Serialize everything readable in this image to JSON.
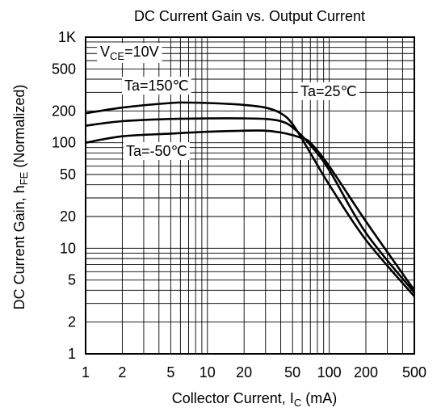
{
  "chart_data": {
    "type": "line",
    "title": "DC Current Gain vs. Output Current",
    "xlabel": {
      "main": "Collector Current, I",
      "sub": "C",
      "unit": " (mA)"
    },
    "ylabel": {
      "main": "DC Current Gain, h",
      "sub": "FE",
      "unit": " (Normalized)"
    },
    "xscale": "log",
    "yscale": "log",
    "xlim": [
      1,
      500
    ],
    "ylim": [
      1,
      1000
    ],
    "grid": true,
    "x_ticks": [
      {
        "value": 1,
        "label": "1"
      },
      {
        "value": 2,
        "label": "2"
      },
      {
        "value": 5,
        "label": "5"
      },
      {
        "value": 10,
        "label": "10"
      },
      {
        "value": 20,
        "label": "20"
      },
      {
        "value": 50,
        "label": "50"
      },
      {
        "value": 100,
        "label": "100"
      },
      {
        "value": 200,
        "label": "200"
      },
      {
        "value": 500,
        "label": "500"
      }
    ],
    "y_ticks": [
      {
        "value": 1,
        "label": "1"
      },
      {
        "value": 2,
        "label": "2"
      },
      {
        "value": 5,
        "label": "5"
      },
      {
        "value": 10,
        "label": "10"
      },
      {
        "value": 20,
        "label": "20"
      },
      {
        "value": 50,
        "label": "50"
      },
      {
        "value": 100,
        "label": "100"
      },
      {
        "value": 200,
        "label": "200"
      },
      {
        "value": 500,
        "label": "500"
      },
      {
        "value": 1000,
        "label": "1K"
      }
    ],
    "condition": {
      "main": "V",
      "sub": "CE",
      "rest": "=10V"
    },
    "series": [
      {
        "name": "Ta=150℃",
        "x": [
          1,
          2,
          5,
          7,
          10,
          20,
          30,
          40,
          50,
          70,
          100,
          200,
          500
        ],
        "y": [
          190,
          215,
          238,
          240,
          238,
          228,
          215,
          190,
          150,
          80,
          40,
          12,
          3.5
        ]
      },
      {
        "name": "Ta=25℃",
        "x": [
          1,
          2,
          5,
          10,
          20,
          30,
          40,
          50,
          70,
          100,
          200,
          500
        ],
        "y": [
          145,
          160,
          168,
          170,
          170,
          168,
          160,
          140,
          95,
          55,
          14,
          3.8
        ]
      },
      {
        "name": "Ta=-50℃",
        "x": [
          1,
          2,
          5,
          10,
          20,
          30,
          40,
          50,
          60,
          70,
          100,
          200,
          500
        ],
        "y": [
          100,
          115,
          122,
          127,
          130,
          130,
          125,
          118,
          110,
          100,
          60,
          18,
          4
        ]
      }
    ]
  }
}
